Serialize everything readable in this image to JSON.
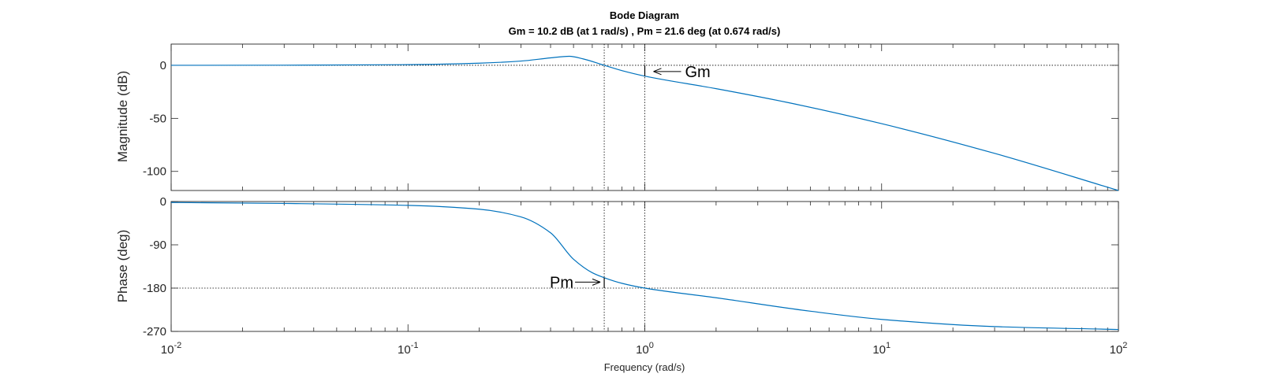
{
  "chart_data": {
    "type": "line",
    "title": "Bode Diagram",
    "subtitle": "Gm = 10.2 dB (at 1 rad/s) ,  Pm = 21.6 deg (at 0.674 rad/s)",
    "xlabel": "Frequency  (rad/s)",
    "x_scale": "log",
    "xlim": [
      0.01,
      100
    ],
    "x_ticks": [
      {
        "base": "10",
        "exp": "-2"
      },
      {
        "base": "10",
        "exp": "-1"
      },
      {
        "base": "10",
        "exp": "0"
      },
      {
        "base": "10",
        "exp": "1"
      },
      {
        "base": "10",
        "exp": "2"
      }
    ],
    "line_color": "#0072BD",
    "grid": false,
    "gain_margin": {
      "value_db": 10.2,
      "frequency": 1,
      "label": "Gm"
    },
    "phase_margin": {
      "value_deg": 21.6,
      "frequency": 0.674,
      "label": "Pm"
    },
    "panels": [
      {
        "name": "magnitude",
        "ylabel": "Magnitude (dB)",
        "ylim": [
          -118,
          20
        ],
        "yticks": [
          0,
          -50,
          -100
        ],
        "ytick_labels": [
          "0",
          "-50",
          "-100"
        ],
        "reference_line": 0,
        "series": {
          "x": [
            0.01,
            0.03,
            0.1,
            0.2,
            0.3,
            0.4,
            0.48,
            0.55,
            0.674,
            0.8,
            1,
            2,
            4,
            10,
            30,
            100
          ],
          "y": [
            0,
            0.1,
            0.6,
            2,
            4,
            7,
            8.5,
            6,
            0,
            -5,
            -10.2,
            -22,
            -35,
            -55,
            -83,
            -118
          ]
        }
      },
      {
        "name": "phase",
        "ylabel": "Phase (deg)",
        "ylim": [
          -270,
          0
        ],
        "yticks": [
          0,
          -90,
          -180,
          -270
        ],
        "ytick_labels": [
          "0",
          "-90",
          "-180",
          "-270"
        ],
        "reference_line": -180,
        "series": {
          "x": [
            0.01,
            0.03,
            0.1,
            0.2,
            0.3,
            0.4,
            0.5,
            0.6,
            0.674,
            0.8,
            1,
            2,
            5,
            10,
            30,
            100
          ],
          "y": [
            -2,
            -4,
            -8,
            -16,
            -32,
            -65,
            -120,
            -148,
            -158.4,
            -170,
            -180,
            -200,
            -228,
            -245,
            -260,
            -266
          ]
        }
      }
    ]
  }
}
